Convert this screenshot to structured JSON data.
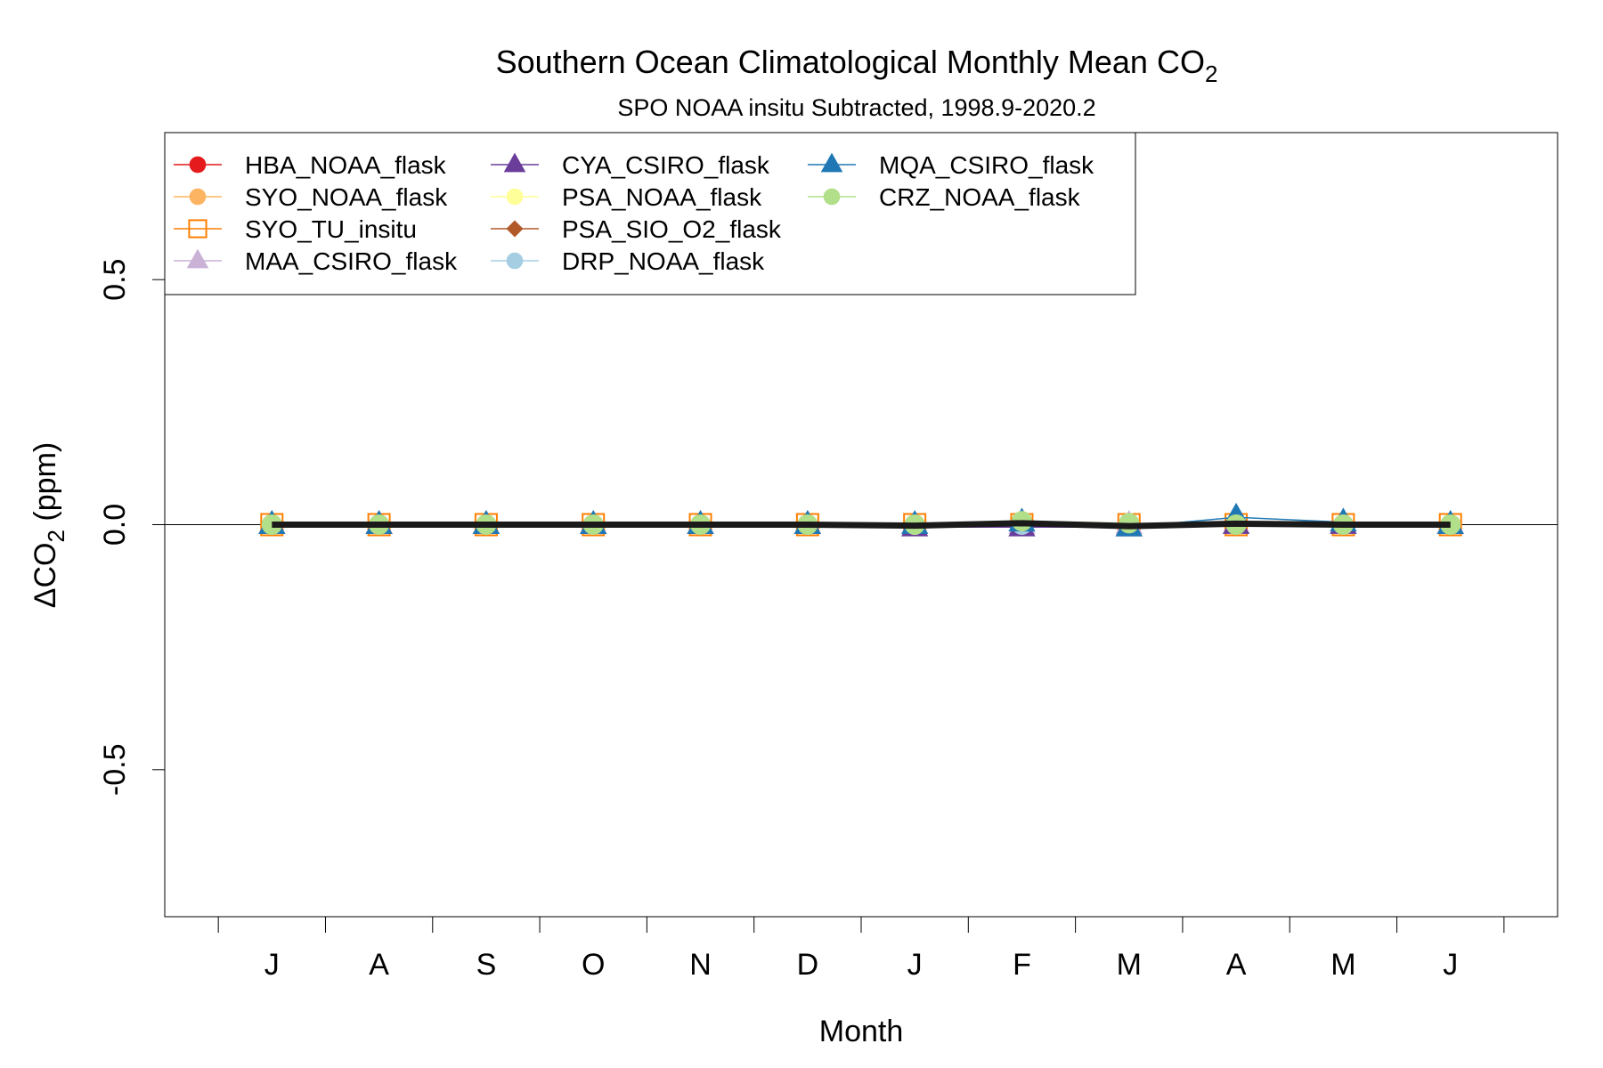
{
  "chart_data": {
    "type": "line",
    "title_main": "Southern Ocean Climatological Monthly Mean CO",
    "title_sub": "2",
    "subtitle": "SPO NOAA insitu Subtracted, 1998.9-2020.2",
    "xlabel": "Month",
    "ylabel_prefix": "ΔCO",
    "ylabel_sub": "2",
    "ylabel_suffix": " (ppm)",
    "ylim": [
      -0.8,
      0.8
    ],
    "yticks": [
      {
        "value": -0.5,
        "label": "-0.5"
      },
      {
        "value": 0.0,
        "label": "0.0"
      },
      {
        "value": 0.5,
        "label": "0.5"
      }
    ],
    "xlim": [
      0.5,
      13.5
    ],
    "categories": [
      "J",
      "A",
      "S",
      "O",
      "N",
      "D",
      "J",
      "F",
      "M",
      "A",
      "M",
      "J"
    ],
    "legend_position": "top-left",
    "grid": false,
    "series": [
      {
        "name": "HBA_NOAA_flask",
        "color": "#e41a1c",
        "marker": "circle",
        "values": [
          0,
          0,
          0,
          0,
          0,
          0,
          0,
          0,
          0,
          0,
          0,
          0
        ]
      },
      {
        "name": "SYO_NOAA_flask",
        "color": "#fdb462",
        "marker": "circle",
        "values": [
          0,
          0,
          0,
          0,
          0,
          0,
          0,
          0.005,
          0,
          0,
          0,
          0
        ]
      },
      {
        "name": "SYO_TU_insitu",
        "color": "#ff7f00",
        "marker": "square-open",
        "values": [
          0,
          0,
          0,
          0,
          0,
          0,
          0,
          0,
          0,
          0,
          0,
          0
        ]
      },
      {
        "name": "MAA_CSIRO_flask",
        "color": "#cab2d6",
        "marker": "triangle",
        "values": [
          0,
          0,
          0,
          0,
          0,
          0,
          0,
          0,
          0,
          0,
          0,
          0
        ]
      },
      {
        "name": "CYA_CSIRO_flask",
        "color": "#6a3d9a",
        "marker": "triangle",
        "values": [
          0,
          0,
          0,
          0,
          0,
          0,
          -0.005,
          -0.005,
          -0.005,
          0,
          0,
          0
        ]
      },
      {
        "name": "PSA_NOAA_flask",
        "color": "#ffff99",
        "marker": "circle",
        "values": [
          0,
          0,
          0,
          0,
          0,
          0,
          0,
          0.005,
          0,
          0,
          0,
          0
        ]
      },
      {
        "name": "PSA_SIO_O2_flask",
        "color": "#b15928",
        "marker": "diamond",
        "values": [
          0,
          0,
          0,
          0,
          0,
          0,
          0,
          0,
          0,
          0,
          0,
          0
        ]
      },
      {
        "name": "DRP_NOAA_flask",
        "color": "#a6cee3",
        "marker": "circle",
        "values": [
          0,
          0,
          0,
          0,
          0,
          0,
          0,
          0,
          0,
          0,
          0,
          0
        ]
      },
      {
        "name": "MQA_CSIRO_flask",
        "color": "#1f78b4",
        "marker": "triangle",
        "values": [
          0,
          0,
          0,
          0,
          0,
          0,
          0,
          0.005,
          -0.005,
          0.015,
          0.005,
          0
        ]
      },
      {
        "name": "CRZ_NOAA_flask",
        "color": "#b2df8a",
        "marker": "circle",
        "values": [
          0,
          0,
          0,
          0,
          0,
          0,
          0,
          0.007,
          0.003,
          0,
          0,
          0
        ]
      }
    ],
    "mean_series": {
      "color": "#1a1a1a",
      "values": [
        0,
        0,
        0,
        0,
        0,
        0,
        -0.002,
        0.003,
        -0.003,
        0.002,
        0,
        0
      ]
    }
  }
}
